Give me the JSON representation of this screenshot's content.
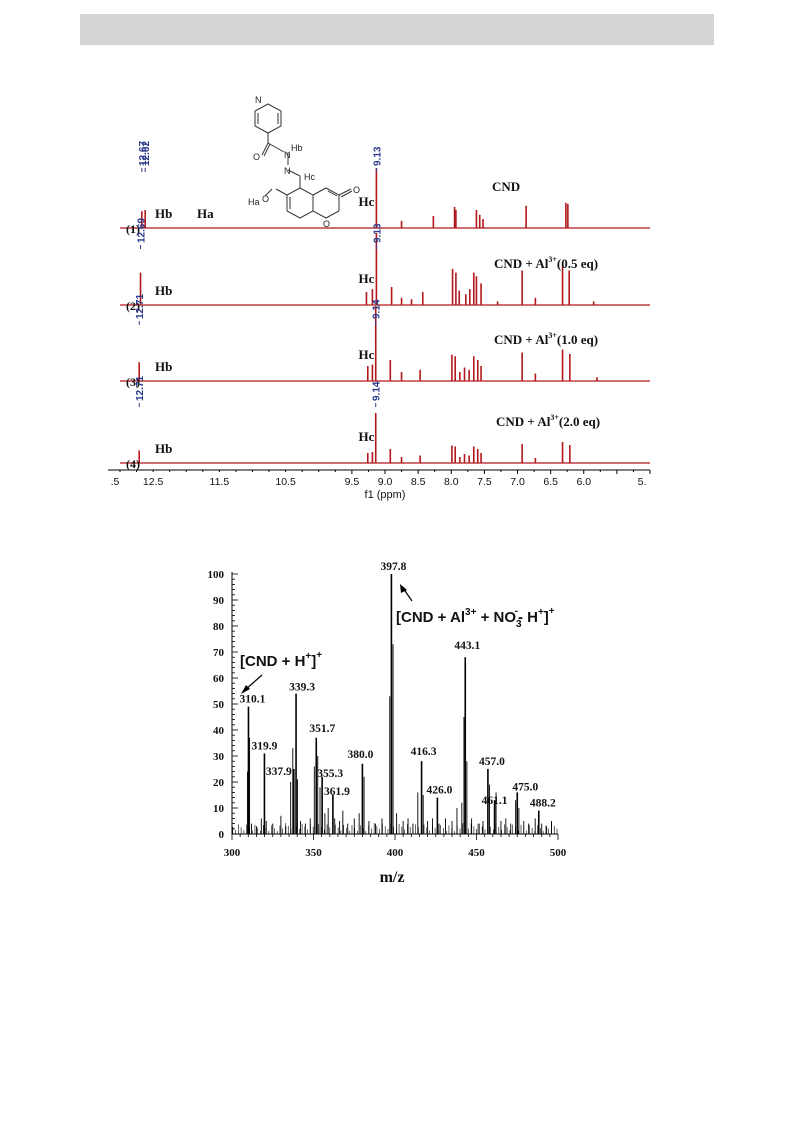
{
  "chart_data": [
    {
      "type": "line",
      "xlabel": "f1 (ppm)",
      "x_ticks": [
        ".5",
        "12.5",
        "11.5",
        "10.5",
        "9.5",
        "9.0",
        "8.5",
        "8.0",
        "7.5",
        "7.0",
        "6.5",
        "6.0",
        "5."
      ],
      "xlim": [
        13.0,
        5.0
      ],
      "line_color": "#b2181b",
      "traces": [
        {
          "label": "CND",
          "index_label": "(1)",
          "peak_labels": [
            "12.67",
            "12.62",
            "9.13"
          ],
          "proton_labels": [
            {
              "text": "Hb",
              "ppm": 12.95
            },
            {
              "text": "Ha",
              "ppm": 12.45
            },
            {
              "text": "Hc",
              "ppm": 9.4
            }
          ],
          "peaks": [
            [
              12.67,
              0.28
            ],
            [
              12.62,
              0.3
            ],
            [
              9.13,
              1.0
            ],
            [
              8.75,
              0.12
            ],
            [
              8.27,
              0.2
            ],
            [
              7.95,
              0.35
            ],
            [
              7.93,
              0.3
            ],
            [
              7.62,
              0.3
            ],
            [
              7.57,
              0.22
            ],
            [
              7.52,
              0.15
            ],
            [
              6.87,
              0.37
            ],
            [
              6.27,
              0.42
            ],
            [
              6.24,
              0.4
            ]
          ]
        },
        {
          "label": "CND + Al",
          "superscript": "3+",
          "suffix": "(0.5 eq)",
          "index_label": "(2)",
          "peak_labels": [
            "12.69",
            "9.13"
          ],
          "proton_labels": [
            {
              "text": "Hb",
              "ppm": 12.95
            },
            {
              "text": "Hc",
              "ppm": 9.4
            }
          ],
          "peaks": [
            [
              12.69,
              0.45
            ],
            [
              9.28,
              0.18
            ],
            [
              9.19,
              0.22
            ],
            [
              9.13,
              1.0
            ],
            [
              8.9,
              0.25
            ],
            [
              8.75,
              0.1
            ],
            [
              8.6,
              0.08
            ],
            [
              8.43,
              0.18
            ],
            [
              7.98,
              0.5
            ],
            [
              7.93,
              0.45
            ],
            [
              7.88,
              0.2
            ],
            [
              7.78,
              0.15
            ],
            [
              7.72,
              0.22
            ],
            [
              7.66,
              0.45
            ],
            [
              7.62,
              0.4
            ],
            [
              7.55,
              0.3
            ],
            [
              7.3,
              0.05
            ],
            [
              6.93,
              0.48
            ],
            [
              6.73,
              0.1
            ],
            [
              6.32,
              0.55
            ],
            [
              6.22,
              0.48
            ],
            [
              5.85,
              0.05
            ]
          ]
        },
        {
          "label": "CND + Al",
          "superscript": "3+",
          "suffix": "(1.0 eq)",
          "index_label": "(3)",
          "peak_labels": [
            "12.71",
            "9.14"
          ],
          "proton_labels": [
            {
              "text": "Hb",
              "ppm": 12.95
            },
            {
              "text": "Hc",
              "ppm": 9.4
            }
          ],
          "peaks": [
            [
              12.71,
              0.25
            ],
            [
              9.26,
              0.2
            ],
            [
              9.19,
              0.22
            ],
            [
              9.14,
              1.0
            ],
            [
              8.92,
              0.28
            ],
            [
              8.75,
              0.12
            ],
            [
              8.47,
              0.15
            ],
            [
              7.99,
              0.35
            ],
            [
              7.94,
              0.33
            ],
            [
              7.87,
              0.12
            ],
            [
              7.8,
              0.18
            ],
            [
              7.73,
              0.15
            ],
            [
              7.66,
              0.33
            ],
            [
              7.6,
              0.28
            ],
            [
              7.55,
              0.2
            ],
            [
              6.93,
              0.38
            ],
            [
              6.73,
              0.1
            ],
            [
              6.32,
              0.42
            ],
            [
              6.21,
              0.36
            ],
            [
              5.8,
              0.05
            ]
          ]
        },
        {
          "label": "CND + Al",
          "superscript": "3+",
          "suffix": "(2.0 eq)",
          "index_label": "(4)",
          "peak_labels": [
            "12.71",
            "9.14"
          ],
          "proton_labels": [
            {
              "text": "Hb",
              "ppm": 12.95
            },
            {
              "text": "Hc",
              "ppm": 9.4
            }
          ],
          "peaks": [
            [
              12.71,
              0.25
            ],
            [
              9.26,
              0.2
            ],
            [
              9.19,
              0.22
            ],
            [
              9.14,
              1.0
            ],
            [
              8.92,
              0.28
            ],
            [
              8.75,
              0.12
            ],
            [
              8.47,
              0.15
            ],
            [
              7.99,
              0.35
            ],
            [
              7.94,
              0.33
            ],
            [
              7.87,
              0.12
            ],
            [
              7.8,
              0.18
            ],
            [
              7.73,
              0.15
            ],
            [
              7.66,
              0.33
            ],
            [
              7.6,
              0.28
            ],
            [
              7.55,
              0.2
            ],
            [
              6.93,
              0.38
            ],
            [
              6.73,
              0.1
            ],
            [
              6.32,
              0.42
            ],
            [
              6.21,
              0.36
            ]
          ]
        }
      ],
      "structure_labels": {
        "hb": "Hb",
        "hc": "Hc",
        "ha": "Ha",
        "n": "N",
        "o": "O"
      }
    },
    {
      "type": "bar",
      "xlabel": "m/z",
      "xlim": [
        300,
        500
      ],
      "ylim": [
        0,
        100
      ],
      "x_ticks": [
        300,
        350,
        400,
        450,
        500
      ],
      "y_ticks": [
        0,
        10,
        20,
        30,
        40,
        50,
        60,
        70,
        80,
        90,
        100
      ],
      "bar_color": "#000000",
      "labeled_peaks": [
        {
          "mz": 310.1,
          "intensity": 49,
          "label": "310.1"
        },
        {
          "mz": 319.9,
          "intensity": 31,
          "label": "319.9"
        },
        {
          "mz": 337.9,
          "intensity": 25,
          "label": "337.9"
        },
        {
          "mz": 339.3,
          "intensity": 54,
          "label": "339.3"
        },
        {
          "mz": 351.7,
          "intensity": 37,
          "label": "351.7"
        },
        {
          "mz": 355.3,
          "intensity": 22,
          "label": "355.3"
        },
        {
          "mz": 361.9,
          "intensity": 15,
          "label": "361.9"
        },
        {
          "mz": 380.0,
          "intensity": 27,
          "label": "380.0"
        },
        {
          "mz": 397.8,
          "intensity": 100,
          "label": "397.8"
        },
        {
          "mz": 416.3,
          "intensity": 28,
          "label": "416.3"
        },
        {
          "mz": 426.0,
          "intensity": 14,
          "label": "426.0"
        },
        {
          "mz": 443.1,
          "intensity": 68,
          "label": "443.1"
        },
        {
          "mz": 457.0,
          "intensity": 25,
          "label": "457.0"
        },
        {
          "mz": 461.1,
          "intensity": 13,
          "label": "461.1"
        },
        {
          "mz": 475.0,
          "intensity": 16,
          "label": "475.0"
        },
        {
          "mz": 488.2,
          "intensity": 9,
          "label": "488.2"
        }
      ],
      "minor_peaks": [
        [
          309.5,
          24
        ],
        [
          310.8,
          37
        ],
        [
          312,
          4
        ],
        [
          315,
          3
        ],
        [
          318,
          6
        ],
        [
          321,
          5
        ],
        [
          325,
          4
        ],
        [
          330,
          7
        ],
        [
          333,
          3
        ],
        [
          336,
          20
        ],
        [
          337.3,
          33
        ],
        [
          340.2,
          21
        ],
        [
          342,
          5
        ],
        [
          345,
          4
        ],
        [
          348,
          6
        ],
        [
          350.5,
          26
        ],
        [
          352.6,
          30
        ],
        [
          354,
          18
        ],
        [
          357,
          8
        ],
        [
          359,
          10
        ],
        [
          363,
          6
        ],
        [
          366,
          5
        ],
        [
          368,
          9
        ],
        [
          371,
          4
        ],
        [
          375,
          6
        ],
        [
          378,
          8
        ],
        [
          381,
          22
        ],
        [
          384,
          5
        ],
        [
          388,
          4
        ],
        [
          392,
          6
        ],
        [
          396.8,
          53
        ],
        [
          398.8,
          73
        ],
        [
          401,
          8
        ],
        [
          405,
          5
        ],
        [
          408,
          6
        ],
        [
          411,
          4
        ],
        [
          414,
          16
        ],
        [
          417.3,
          15
        ],
        [
          420,
          5
        ],
        [
          423,
          6
        ],
        [
          427,
          4
        ],
        [
          431,
          6
        ],
        [
          435,
          5
        ],
        [
          438,
          10
        ],
        [
          441,
          12
        ],
        [
          442.3,
          45
        ],
        [
          444.1,
          28
        ],
        [
          447,
          6
        ],
        [
          451,
          4
        ],
        [
          454,
          5
        ],
        [
          458,
          19
        ],
        [
          462,
          16
        ],
        [
          465,
          5
        ],
        [
          468,
          6
        ],
        [
          471,
          4
        ],
        [
          474,
          13
        ],
        [
          476,
          10
        ],
        [
          479,
          5
        ],
        [
          482,
          4
        ],
        [
          486,
          6
        ],
        [
          490,
          4
        ],
        [
          493,
          3
        ],
        [
          496,
          5
        ]
      ],
      "annotations": {
        "left": {
          "pre": "[CND + H",
          "sup": "+",
          "post": "]",
          "outer_sup": "+"
        },
        "right": {
          "pre": "[CND + Al",
          "sup": "3+",
          "mid": " + NO",
          "sub": "3",
          "sup2": "-",
          "post": "- H",
          "sup3": "+",
          "close": "]",
          "outer_sup": "+"
        }
      }
    }
  ]
}
